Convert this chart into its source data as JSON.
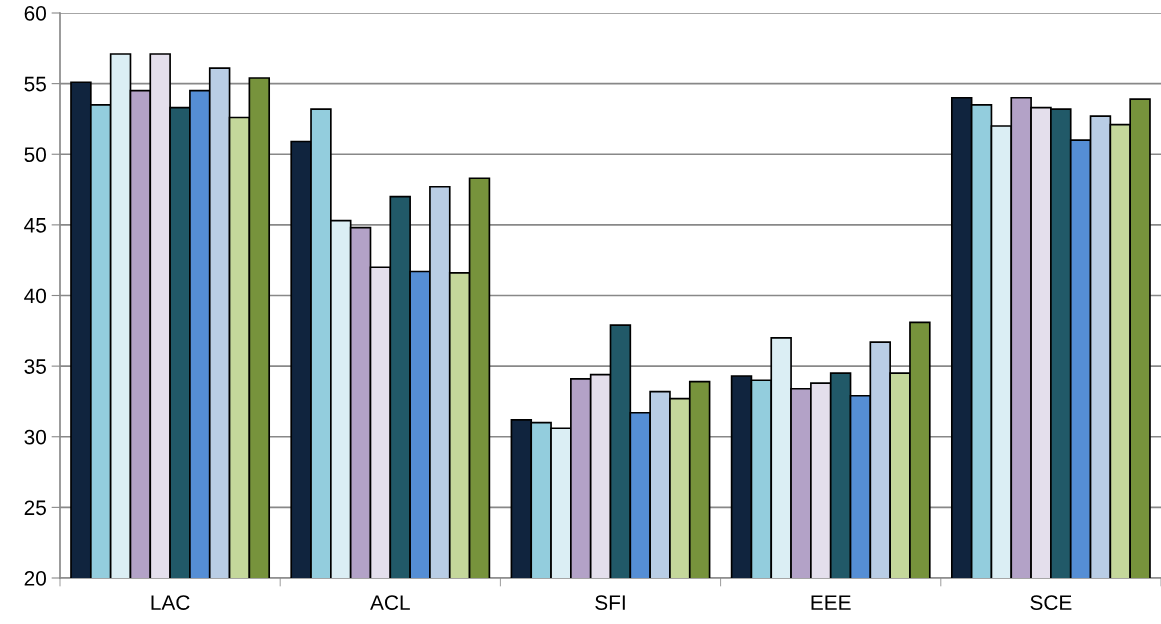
{
  "chart_data": {
    "type": "bar",
    "categories": [
      "LAC",
      "ACL",
      "SFI",
      "EEE",
      "SCE"
    ],
    "series": [
      {
        "color": "#10243e",
        "values": [
          55.1,
          50.9,
          31.2,
          34.3,
          54.0
        ]
      },
      {
        "color": "#93cddd",
        "values": [
          53.5,
          53.2,
          31.0,
          34.0,
          53.5
        ]
      },
      {
        "color": "#dbeef4",
        "values": [
          57.1,
          45.3,
          30.6,
          37.0,
          52.0
        ]
      },
      {
        "color": "#b3a2c7",
        "values": [
          54.5,
          44.8,
          34.1,
          33.4,
          54.0
        ]
      },
      {
        "color": "#e4dfec",
        "values": [
          57.1,
          42.0,
          34.4,
          33.8,
          53.3
        ]
      },
      {
        "color": "#215968",
        "values": [
          53.3,
          47.0,
          37.9,
          34.5,
          53.2
        ]
      },
      {
        "color": "#558ed5",
        "values": [
          54.5,
          41.7,
          31.7,
          32.9,
          51.0
        ]
      },
      {
        "color": "#b9cde5",
        "values": [
          56.1,
          47.7,
          33.2,
          36.7,
          52.7
        ]
      },
      {
        "color": "#c4d79b",
        "values": [
          52.6,
          41.6,
          32.7,
          34.5,
          52.1
        ]
      },
      {
        "color": "#77933c",
        "values": [
          55.4,
          48.3,
          33.9,
          38.1,
          53.9
        ]
      }
    ],
    "ylim": [
      20,
      60
    ],
    "yticks": [
      20,
      25,
      30,
      35,
      40,
      45,
      50,
      55,
      60
    ],
    "grid": "y"
  }
}
